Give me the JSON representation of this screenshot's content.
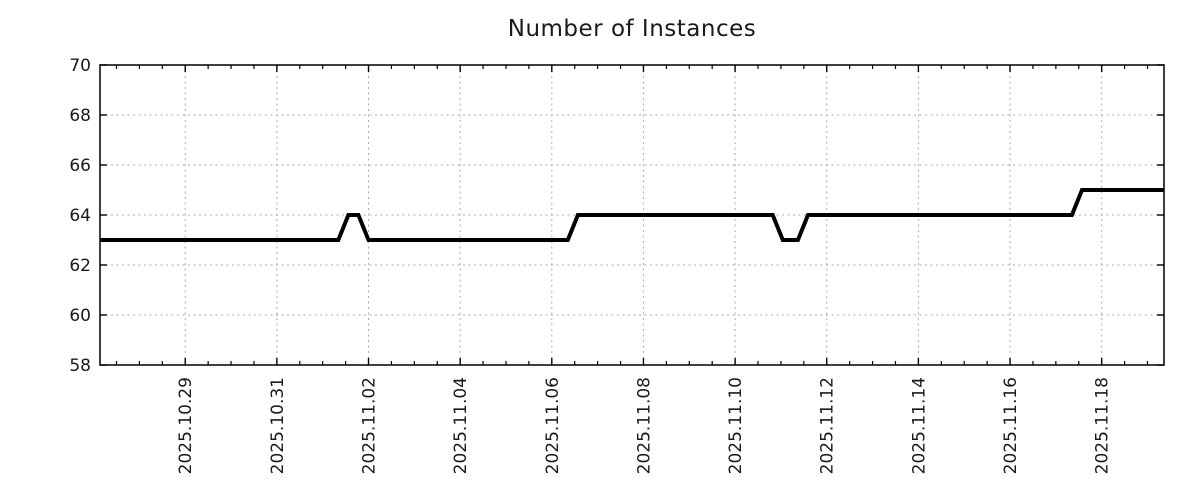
{
  "chart_data": {
    "type": "line",
    "title": "Number of Instances",
    "x_axis": {
      "tick_labels": [
        "2025.10.29",
        "2025.10.31",
        "2025.11.02",
        "2025.11.04",
        "2025.11.06",
        "2025.11.08",
        "2025.11.10",
        "2025.11.12",
        "2025.11.14",
        "2025.11.16",
        "2025.11.18"
      ],
      "tick_offsets_days": [
        0,
        2,
        4,
        6,
        8,
        10,
        12,
        14,
        16,
        18,
        20
      ],
      "minor_tick_step_days": 0.5,
      "range_days_from_2025_10_29": [
        -1.86,
        21.36
      ]
    },
    "y_axis": {
      "tick_labels": [
        "58",
        "60",
        "62",
        "64",
        "66",
        "68",
        "70"
      ],
      "tick_values": [
        58,
        60,
        62,
        64,
        66,
        68,
        70
      ],
      "range": [
        58,
        70
      ]
    },
    "grid": {
      "show": true,
      "color": "#ababab",
      "style": "dashed"
    },
    "legend": {
      "show": false
    },
    "series": [
      {
        "name": "instances",
        "color": "#000000",
        "points_x_days_from_2025_10_29": [
          [
            -1.86,
            63
          ],
          [
            3.34,
            63
          ],
          [
            3.56,
            64
          ],
          [
            3.78,
            64
          ],
          [
            4.0,
            63
          ],
          [
            8.35,
            63
          ],
          [
            8.57,
            64
          ],
          [
            12.82,
            64
          ],
          [
            13.04,
            63
          ],
          [
            13.37,
            63
          ],
          [
            13.59,
            64
          ],
          [
            19.35,
            64
          ],
          [
            19.57,
            65
          ],
          [
            21.36,
            65
          ]
        ]
      }
    ],
    "colors": {
      "axis": "#000000",
      "text": "#1a1a1a",
      "background": "#ffffff"
    }
  }
}
